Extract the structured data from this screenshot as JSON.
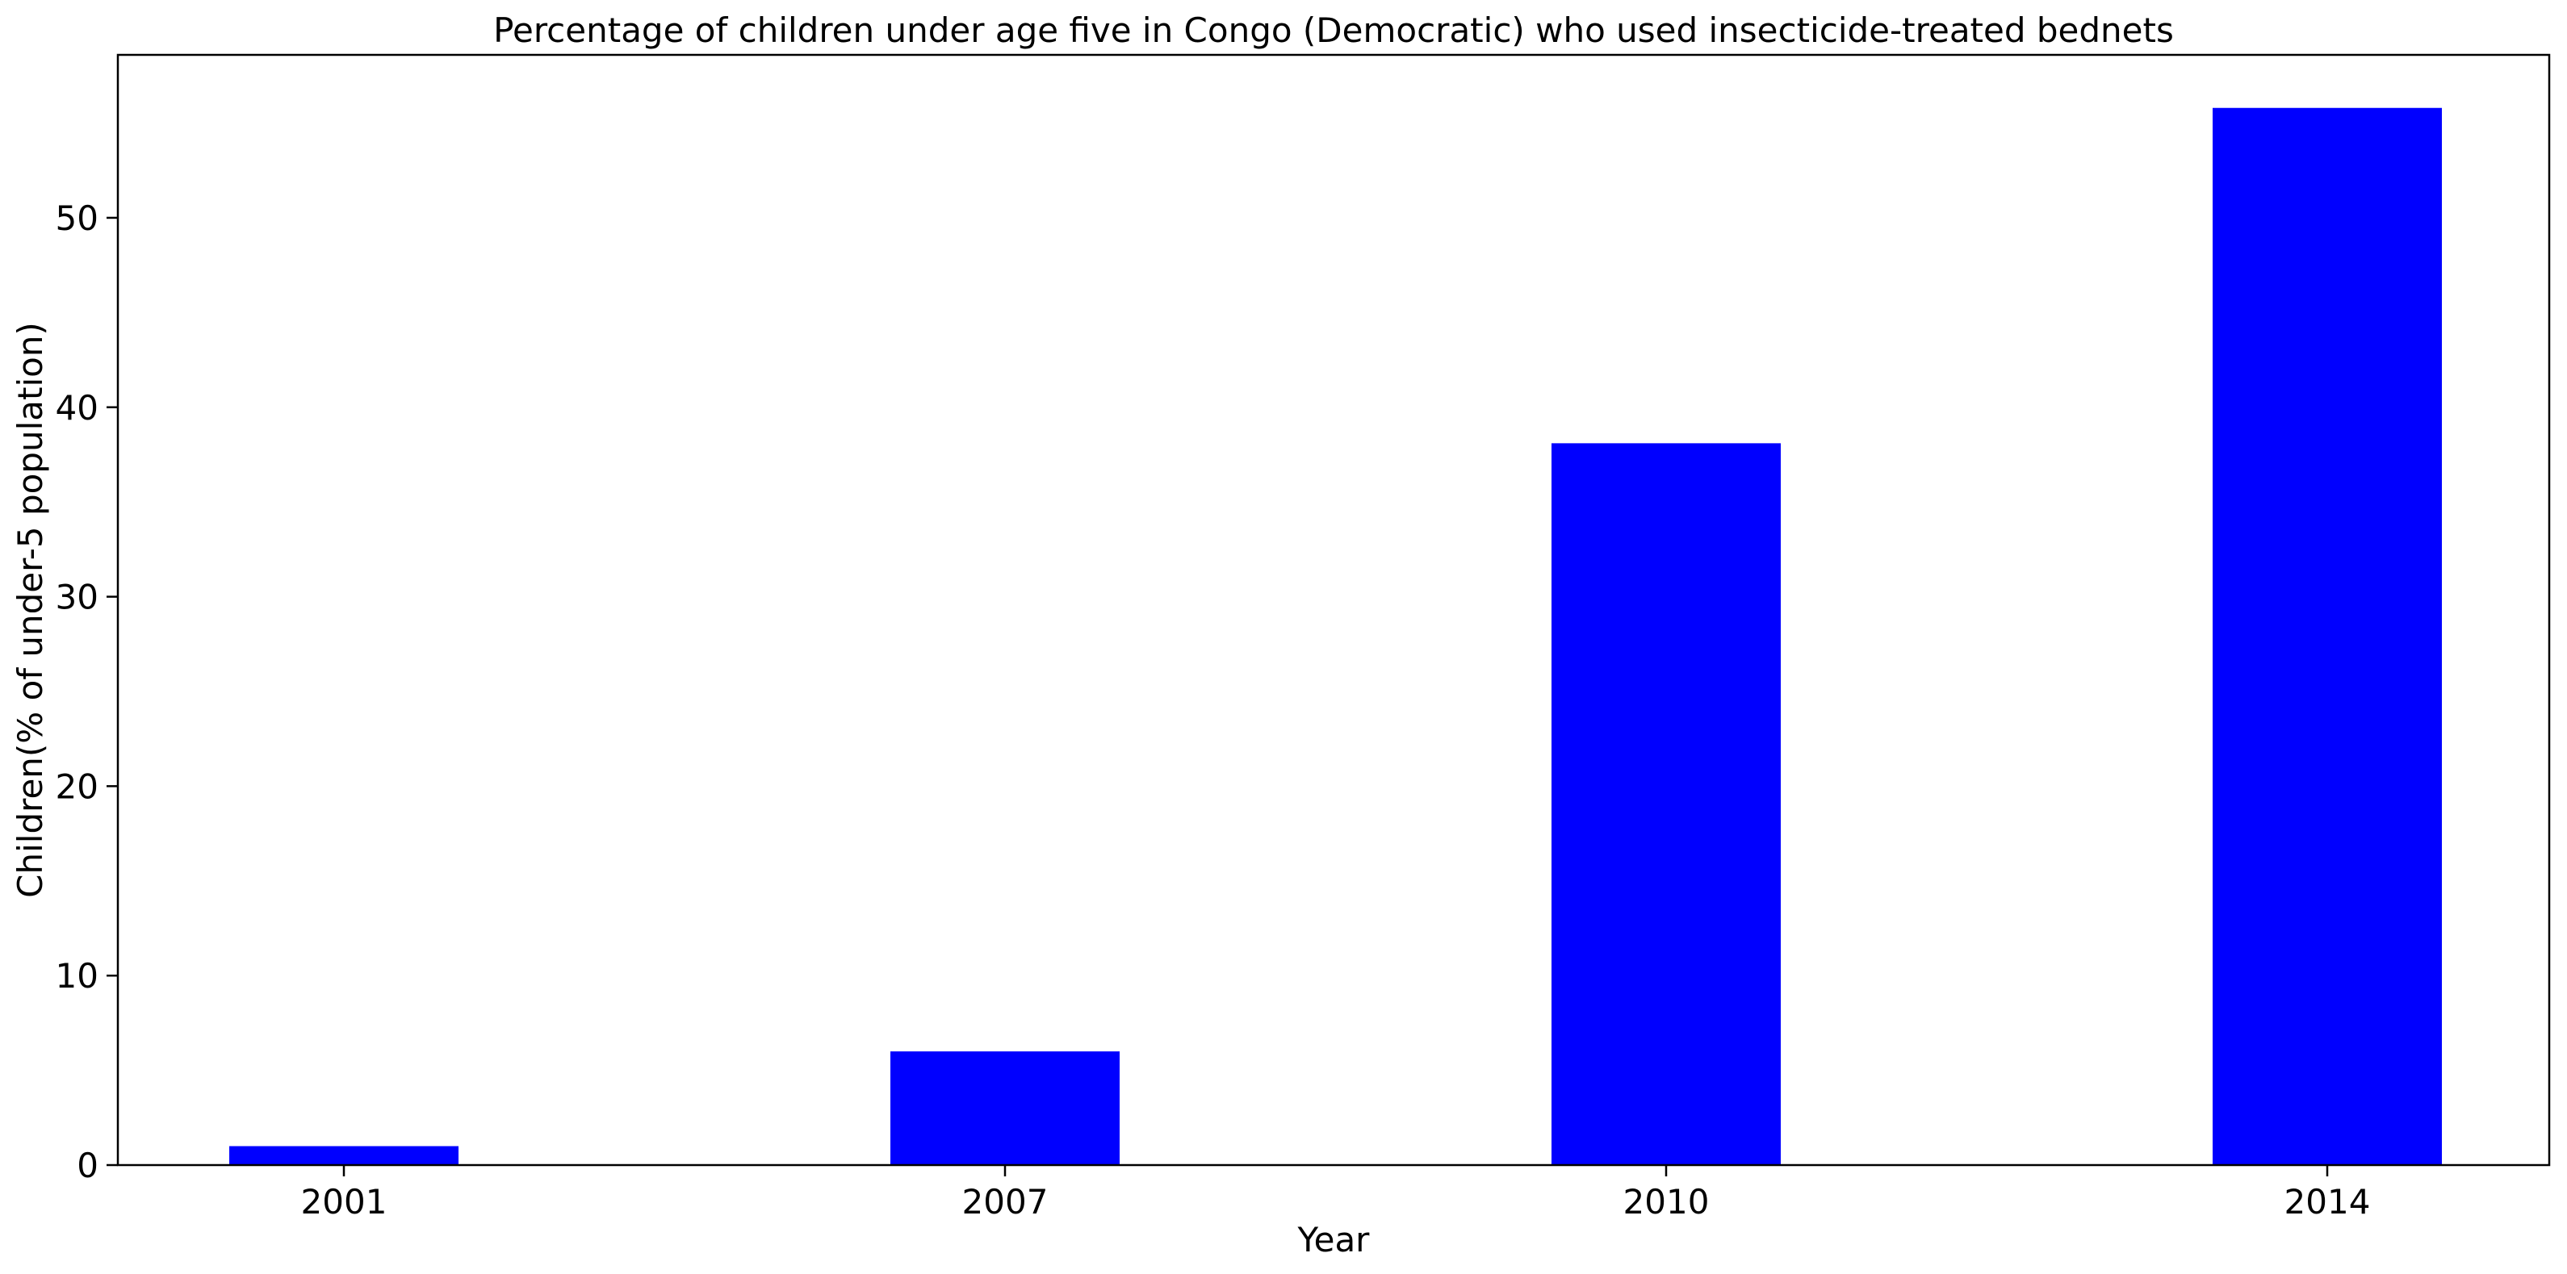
{
  "chart_data": {
    "type": "bar",
    "title": "Percentage of children under age five in Congo (Democratic) who used insecticide-treated bednets",
    "xlabel": "Year",
    "ylabel": "Children(% of under-5 population)",
    "categories": [
      "2001",
      "2007",
      "2010",
      "2014"
    ],
    "values": [
      1.0,
      6.0,
      38.1,
      55.8
    ],
    "ylim": [
      0,
      58.6
    ],
    "yticks": [
      0,
      10,
      20,
      30,
      40,
      50
    ],
    "grid": false,
    "legend": "none",
    "bar_color": "#0000ff"
  }
}
